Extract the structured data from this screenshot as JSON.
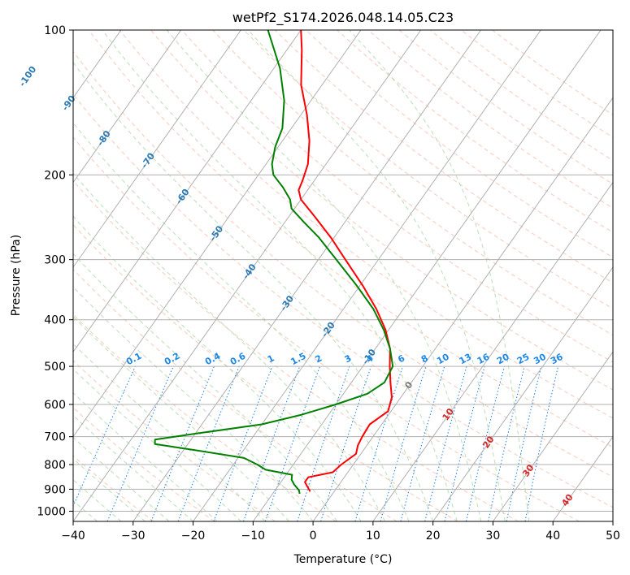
{
  "chart_data": {
    "type": "line",
    "subtype": "skew-T log-P diagram",
    "title": "wetPf2_S174.2026.048.14.05.C23",
    "xlabel": "Temperature (°C)",
    "ylabel": "Pressure (hPa)",
    "xlim": [
      -40,
      50
    ],
    "ylim": [
      1050,
      100
    ],
    "x_ticks": [
      -40,
      -30,
      -20,
      -10,
      0,
      10,
      20,
      30,
      40,
      50
    ],
    "y_ticks": [
      100,
      200,
      300,
      400,
      500,
      600,
      700,
      800,
      900,
      1000
    ],
    "x_tick_labels": [
      "−40",
      "−30",
      "−20",
      "−10",
      "0",
      "10",
      "20",
      "30",
      "40",
      "50"
    ],
    "y_tick_labels": [
      "100",
      "200",
      "300",
      "400",
      "500",
      "600",
      "700",
      "800",
      "900",
      "1000"
    ],
    "grid": true,
    "isotherm_labels": [
      {
        "text": "-100",
        "temp": -100,
        "p": 125
      },
      {
        "text": "-90",
        "temp": -90,
        "p": 142
      },
      {
        "text": "-80",
        "temp": -80,
        "p": 168
      },
      {
        "text": "-70",
        "temp": -70,
        "p": 187
      },
      {
        "text": "-60",
        "temp": -60,
        "p": 222
      },
      {
        "text": "-50",
        "temp": -50,
        "p": 265
      },
      {
        "text": "-40",
        "temp": -40,
        "p": 318
      },
      {
        "text": "-30",
        "temp": -30,
        "p": 370
      },
      {
        "text": "-20",
        "temp": -20,
        "p": 420
      },
      {
        "text": "-10",
        "temp": -10,
        "p": 478
      },
      {
        "text": "0",
        "temp": 0,
        "p": 548
      },
      {
        "text": "10",
        "temp": 10,
        "p": 630
      },
      {
        "text": "20",
        "temp": 20,
        "p": 720
      },
      {
        "text": "30",
        "temp": 30,
        "p": 825
      },
      {
        "text": "40",
        "temp": 40,
        "p": 950
      }
    ],
    "mixing_ratio_labels": [
      "0.1",
      "0.2",
      "0.4",
      "0.6",
      "1",
      "1.5",
      "2",
      "3",
      "4",
      "6",
      "8",
      "10",
      "13",
      "16",
      "20",
      "25",
      "30",
      "36"
    ],
    "series": [
      {
        "name": "Temperature",
        "color": "#ff0000",
        "points": [
          {
            "p": 910,
            "t": -4.0
          },
          {
            "p": 890,
            "t": -5.0
          },
          {
            "p": 870,
            "t": -6.0
          },
          {
            "p": 850,
            "t": -6.0
          },
          {
            "p": 830,
            "t": -2.5
          },
          {
            "p": 800,
            "t": -2.0
          },
          {
            "p": 760,
            "t": -0.8
          },
          {
            "p": 730,
            "t": -1.5
          },
          {
            "p": 700,
            "t": -1.8
          },
          {
            "p": 660,
            "t": -2.0
          },
          {
            "p": 620,
            "t": -0.5
          },
          {
            "p": 580,
            "t": -1.5
          },
          {
            "p": 540,
            "t": -3.5
          },
          {
            "p": 500,
            "t": -5.5
          },
          {
            "p": 460,
            "t": -7.5
          },
          {
            "p": 420,
            "t": -10.5
          },
          {
            "p": 380,
            "t": -14.5
          },
          {
            "p": 340,
            "t": -19.5
          },
          {
            "p": 300,
            "t": -25.5
          },
          {
            "p": 270,
            "t": -30.5
          },
          {
            "p": 245,
            "t": -35.5
          },
          {
            "p": 225,
            "t": -40.0
          },
          {
            "p": 215,
            "t": -41.5
          },
          {
            "p": 205,
            "t": -42.0
          },
          {
            "p": 190,
            "t": -43.0
          },
          {
            "p": 170,
            "t": -45.5
          },
          {
            "p": 150,
            "t": -49.0
          },
          {
            "p": 130,
            "t": -53.5
          },
          {
            "p": 110,
            "t": -57.5
          },
          {
            "p": 100,
            "t": -60.0
          }
        ]
      },
      {
        "name": "Dewpoint",
        "color": "#008000",
        "points": [
          {
            "p": 920,
            "t": -5.5
          },
          {
            "p": 905,
            "t": -6.0
          },
          {
            "p": 880,
            "t": -7.5
          },
          {
            "p": 860,
            "t": -8.5
          },
          {
            "p": 840,
            "t": -9.0
          },
          {
            "p": 820,
            "t": -14.0
          },
          {
            "p": 800,
            "t": -16.0
          },
          {
            "p": 775,
            "t": -19.0
          },
          {
            "p": 750,
            "t": -27.0
          },
          {
            "p": 725,
            "t": -35.5
          },
          {
            "p": 710,
            "t": -36.0
          },
          {
            "p": 690,
            "t": -30.0
          },
          {
            "p": 660,
            "t": -20.0
          },
          {
            "p": 630,
            "t": -14.5
          },
          {
            "p": 600,
            "t": -10.0
          },
          {
            "p": 570,
            "t": -6.0
          },
          {
            "p": 540,
            "t": -4.5
          },
          {
            "p": 500,
            "t": -5.0
          },
          {
            "p": 460,
            "t": -7.5
          },
          {
            "p": 420,
            "t": -10.8
          },
          {
            "p": 380,
            "t": -15.0
          },
          {
            "p": 340,
            "t": -20.5
          },
          {
            "p": 300,
            "t": -27.0
          },
          {
            "p": 270,
            "t": -32.5
          },
          {
            "p": 250,
            "t": -37.0
          },
          {
            "p": 235,
            "t": -40.5
          },
          {
            "p": 225,
            "t": -41.8
          },
          {
            "p": 212,
            "t": -44.5
          },
          {
            "p": 200,
            "t": -47.5
          },
          {
            "p": 190,
            "t": -49.0
          },
          {
            "p": 175,
            "t": -50.5
          },
          {
            "p": 160,
            "t": -51.5
          },
          {
            "p": 140,
            "t": -54.5
          },
          {
            "p": 120,
            "t": -59.0
          },
          {
            "p": 100,
            "t": -65.5
          }
        ]
      }
    ]
  }
}
